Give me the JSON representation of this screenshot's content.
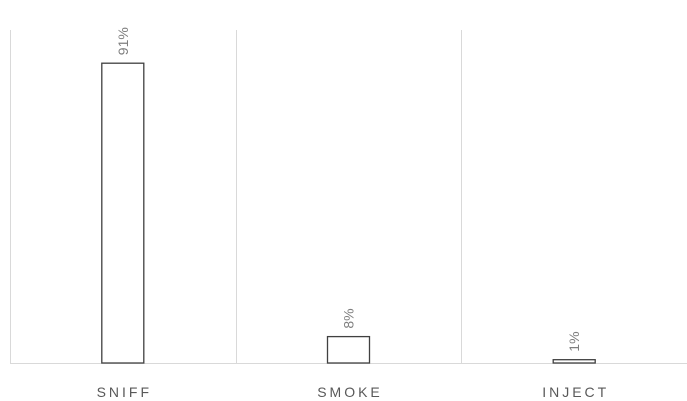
{
  "chart_data": {
    "type": "bar",
    "categories": [
      "SNIFF",
      "SMOKE",
      "INJECT"
    ],
    "values": [
      91,
      8,
      1
    ],
    "data_labels": [
      "91%",
      "8%",
      "1%"
    ],
    "title": "",
    "xlabel": "",
    "ylabel": "",
    "ylim": [
      0,
      100
    ],
    "grid": "vertical separators between categories",
    "legend": "none",
    "colors": {
      "bar_fill": "#ffffff",
      "bar_edge": "#404040",
      "grid": "#d9d9d9",
      "label_text": "#7f7f7f",
      "category_text": "#595959"
    }
  }
}
